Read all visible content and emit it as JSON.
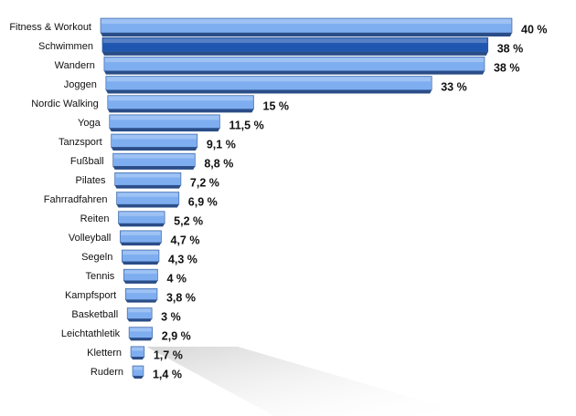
{
  "chart_data": {
    "type": "bar",
    "categories": [
      "Fitness & Workout",
      "Schwimmen",
      "Wandern",
      "Joggen",
      "Nordic Walking",
      "Yoga",
      "Tanzsport",
      "Fußball",
      "Pilates",
      "Fahrradfahren",
      "Reiten",
      "Volleyball",
      "Segeln",
      "Tennis",
      "Kampfsport",
      "Basketball",
      "Leichtathletik",
      "Klettern",
      "Rudern"
    ],
    "values": [
      40,
      38,
      38,
      33,
      15,
      11.5,
      9.1,
      8.8,
      7.2,
      6.9,
      5.2,
      4.7,
      4.3,
      4,
      3.8,
      3,
      2.9,
      1.7,
      1.4
    ],
    "value_labels": [
      "40 %",
      "38 %",
      "38 %",
      "33 %",
      "15 %",
      "11,5 %",
      "9,1 %",
      "8,8 %",
      "7,2 %",
      "6,9 %",
      "5,2 %",
      "4,7 %",
      "4,3 %",
      "4 %",
      "3,8 %",
      "3 %",
      "2,9 %",
      "1,7 %",
      "1,4 %"
    ],
    "colors": [
      "#7eaef0",
      "#1f56b0",
      "#7eaef0",
      "#7eaef0",
      "#7eaef0",
      "#7eaef0",
      "#7eaef0",
      "#7eaef0",
      "#7eaef0",
      "#7eaef0",
      "#7eaef0",
      "#7eaef0",
      "#7eaef0",
      "#7eaef0",
      "#7eaef0",
      "#7eaef0",
      "#7eaef0",
      "#7eaef0",
      "#7eaef0"
    ]
  }
}
